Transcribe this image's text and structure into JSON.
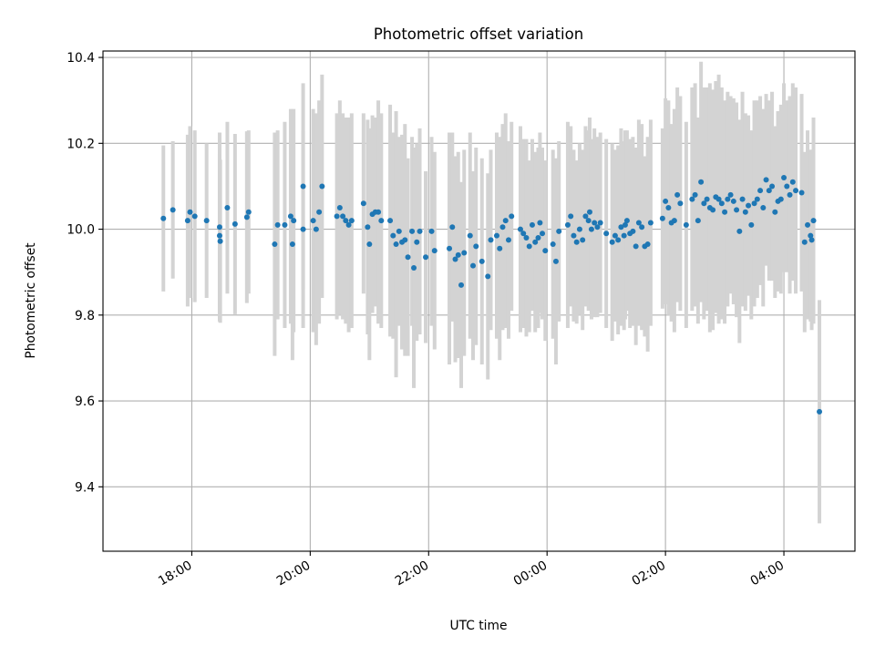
{
  "chart_data": {
    "type": "scatter",
    "title": "Photometric offset variation",
    "xlabel": "UTC time",
    "ylabel": "Photometric offset",
    "x_unit": "UTC hours (24+ = after midnight)",
    "xlim": [
      16.5,
      29.2
    ],
    "ylim": [
      9.25,
      10.415
    ],
    "xticks": [
      {
        "value": 18,
        "label": "18:00"
      },
      {
        "value": 20,
        "label": "20:00"
      },
      {
        "value": 22,
        "label": "22:00"
      },
      {
        "value": 24,
        "label": "00:00"
      },
      {
        "value": 26,
        "label": "02:00"
      },
      {
        "value": 28,
        "label": "04:00"
      }
    ],
    "yticks": [
      {
        "value": 9.4,
        "label": "9.4"
      },
      {
        "value": 9.6,
        "label": "9.6"
      },
      {
        "value": 9.8,
        "label": "9.8"
      },
      {
        "value": 10.0,
        "label": "10.0"
      },
      {
        "value": 10.2,
        "label": "10.2"
      },
      {
        "value": 10.4,
        "label": "10.4"
      }
    ],
    "grid": true,
    "colors": {
      "marker": "#1f77b4",
      "errorbar": "#d3d3d3",
      "grid": "#b0b0b0"
    },
    "series": [
      {
        "x": [
          17.52,
          17.68,
          17.93,
          17.97,
          18.05,
          18.25,
          18.47,
          18.47,
          18.48,
          18.6,
          18.73,
          18.93,
          18.96,
          19.4,
          19.45,
          19.57,
          19.67,
          19.7,
          19.72,
          19.88,
          19.88,
          20.05,
          20.1,
          20.15,
          20.2,
          20.45,
          20.5,
          20.55,
          20.6,
          20.65,
          20.7,
          20.9,
          20.97,
          21.0,
          21.05,
          21.1,
          21.15,
          21.2,
          21.35,
          21.4,
          21.45,
          21.5,
          21.55,
          21.6,
          21.65,
          21.72,
          21.75,
          21.8,
          21.85,
          21.95,
          22.05,
          22.1,
          22.35,
          22.4,
          22.45,
          22.5,
          22.55,
          22.6,
          22.7,
          22.75,
          22.8,
          22.9,
          23.0,
          23.05,
          23.15,
          23.2,
          23.25,
          23.3,
          23.35,
          23.4,
          23.55,
          23.6,
          23.65,
          23.7,
          23.75,
          23.8,
          23.85,
          23.88,
          23.92,
          23.97,
          24.1,
          24.15,
          24.2,
          24.35,
          24.4,
          24.45,
          24.5,
          24.55,
          24.6,
          24.65,
          24.7,
          24.72,
          24.75,
          24.8,
          24.85,
          24.9,
          25.0,
          25.1,
          25.15,
          25.2,
          25.25,
          25.3,
          25.32,
          25.35,
          25.4,
          25.45,
          25.5,
          25.55,
          25.6,
          25.65,
          25.7,
          25.75,
          25.95,
          26.0,
          26.05,
          26.1,
          26.15,
          26.2,
          26.25,
          26.35,
          26.45,
          26.5,
          26.55,
          26.6,
          26.65,
          26.7,
          26.75,
          26.8,
          26.85,
          26.9,
          26.95,
          27.0,
          27.05,
          27.1,
          27.15,
          27.2,
          27.25,
          27.3,
          27.35,
          27.4,
          27.45,
          27.5,
          27.55,
          27.6,
          27.65,
          27.7,
          27.75,
          27.8,
          27.85,
          27.9,
          27.95,
          28.0,
          28.05,
          28.1,
          28.15,
          28.2,
          28.3,
          28.35,
          28.4,
          28.45,
          28.47,
          28.5,
          28.6
        ],
        "y": [
          10.025,
          10.045,
          10.02,
          10.04,
          10.03,
          10.02,
          10.005,
          9.985,
          9.972,
          10.05,
          10.012,
          10.028,
          10.04,
          9.965,
          10.01,
          10.01,
          10.03,
          9.965,
          10.02,
          10.1,
          10.0,
          10.02,
          10.0,
          10.04,
          10.1,
          10.03,
          10.05,
          10.03,
          10.02,
          10.01,
          10.02,
          10.06,
          10.005,
          9.965,
          10.035,
          10.04,
          10.04,
          10.02,
          10.02,
          9.985,
          9.965,
          9.995,
          9.97,
          9.975,
          9.935,
          9.995,
          9.91,
          9.97,
          9.995,
          9.935,
          9.995,
          9.95,
          9.955,
          10.005,
          9.93,
          9.94,
          9.87,
          9.945,
          9.985,
          9.915,
          9.96,
          9.925,
          9.89,
          9.975,
          9.985,
          9.955,
          10.005,
          10.02,
          9.975,
          10.03,
          10.0,
          9.99,
          9.98,
          9.96,
          10.01,
          9.97,
          9.98,
          10.015,
          9.99,
          9.95,
          9.965,
          9.925,
          9.995,
          10.01,
          10.03,
          9.985,
          9.97,
          10.0,
          9.975,
          10.03,
          10.02,
          10.04,
          10.0,
          10.015,
          10.005,
          10.015,
          9.99,
          9.97,
          9.985,
          9.975,
          10.005,
          9.985,
          10.01,
          10.02,
          9.99,
          9.995,
          9.96,
          10.015,
          10.005,
          9.96,
          9.965,
          10.015,
          10.025,
          10.065,
          10.05,
          10.015,
          10.02,
          10.08,
          10.06,
          10.01,
          10.07,
          10.08,
          10.02,
          10.11,
          10.06,
          10.07,
          10.05,
          10.045,
          10.075,
          10.07,
          10.06,
          10.04,
          10.07,
          10.08,
          10.065,
          10.045,
          9.995,
          10.07,
          10.04,
          10.055,
          10.01,
          10.06,
          10.07,
          10.09,
          10.05,
          10.115,
          10.09,
          10.1,
          10.04,
          10.065,
          10.07,
          10.12,
          10.1,
          10.08,
          10.11,
          10.09,
          10.085,
          9.97,
          10.01,
          9.985,
          9.975,
          10.02,
          9.575
        ],
        "yerr": [
          0.17,
          0.16,
          0.2,
          0.2,
          0.2,
          0.18,
          0.22,
          0.19,
          0.19,
          0.2,
          0.21,
          0.2,
          0.19,
          0.26,
          0.22,
          0.24,
          0.25,
          0.27,
          0.26,
          0.24,
          0.23,
          0.26,
          0.27,
          0.26,
          0.26,
          0.24,
          0.25,
          0.24,
          0.24,
          0.25,
          0.25,
          0.21,
          0.25,
          0.27,
          0.23,
          0.22,
          0.26,
          0.25,
          0.27,
          0.24,
          0.31,
          0.22,
          0.25,
          0.27,
          0.23,
          0.22,
          0.28,
          0.23,
          0.24,
          0.2,
          0.22,
          0.23,
          0.27,
          0.22,
          0.24,
          0.24,
          0.24,
          0.24,
          0.24,
          0.22,
          0.23,
          0.24,
          0.24,
          0.21,
          0.24,
          0.26,
          0.24,
          0.25,
          0.23,
          0.22,
          0.24,
          0.22,
          0.23,
          0.2,
          0.2,
          0.21,
          0.21,
          0.21,
          0.2,
          0.21,
          0.22,
          0.24,
          0.21,
          0.24,
          0.21,
          0.2,
          0.19,
          0.2,
          0.21,
          0.21,
          0.21,
          0.22,
          0.21,
          0.22,
          0.21,
          0.21,
          0.22,
          0.23,
          0.2,
          0.22,
          0.23,
          0.22,
          0.22,
          0.21,
          0.22,
          0.22,
          0.23,
          0.24,
          0.24,
          0.21,
          0.25,
          0.24,
          0.21,
          0.24,
          0.25,
          0.23,
          0.26,
          0.25,
          0.25,
          0.24,
          0.26,
          0.26,
          0.24,
          0.28,
          0.27,
          0.26,
          0.29,
          0.28,
          0.27,
          0.29,
          0.27,
          0.26,
          0.25,
          0.23,
          0.24,
          0.25,
          0.26,
          0.25,
          0.23,
          0.21,
          0.22,
          0.24,
          0.23,
          0.22,
          0.23,
          0.2,
          0.21,
          0.22,
          0.2,
          0.21,
          0.22,
          0.22,
          0.2,
          0.23,
          0.23,
          0.24,
          0.23,
          0.21,
          0.22,
          0.2,
          0.21,
          0.24,
          0.26
        ]
      }
    ]
  }
}
